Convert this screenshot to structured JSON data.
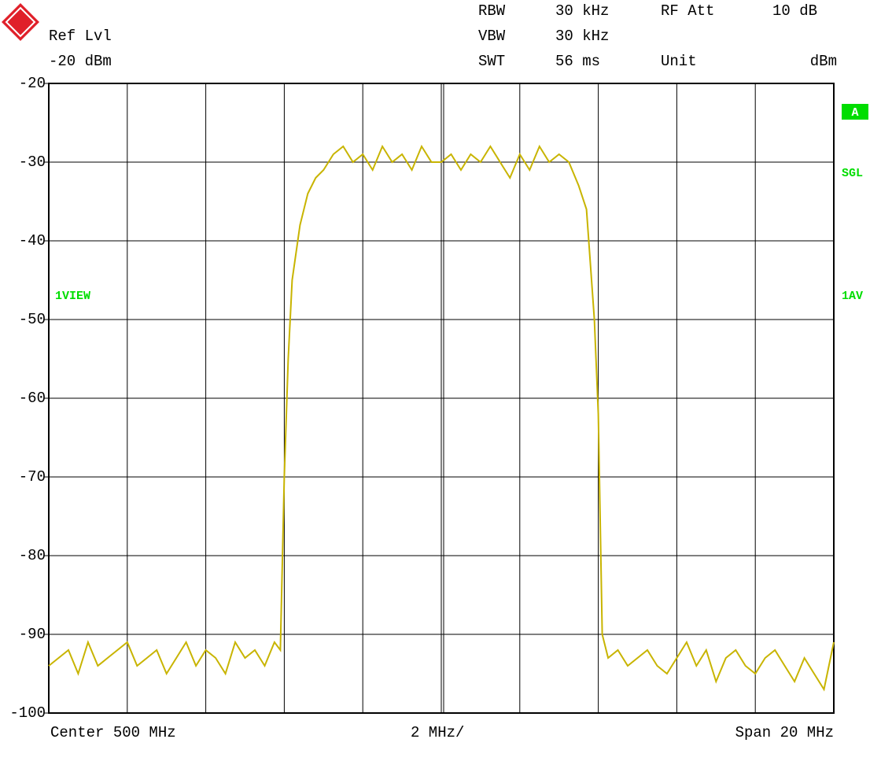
{
  "chart_data": {
    "type": "line",
    "header": {
      "ref_level_label": "Ref Lvl",
      "ref_level": "-20 dBm",
      "rbw_label": "RBW",
      "rbw": "30 kHz",
      "vbw_label": "VBW",
      "vbw": "30 kHz",
      "swt_label": "SWT",
      "swt": "56 ms",
      "rf_att_label": "RF Att",
      "rf_att": "10 dB",
      "unit_label": "Unit",
      "unit": "dBm"
    },
    "annotations": {
      "trace": "A",
      "sweep": "SGL",
      "trace_mode": "1VIEW",
      "detector": "1AV"
    },
    "footer": {
      "center": "Center 500 MHz",
      "scale": "2 MHz/",
      "span": "Span 20 MHz"
    },
    "x": [
      490,
      490.25,
      490.5,
      490.75,
      491,
      491.25,
      491.5,
      491.75,
      492,
      492.25,
      492.5,
      492.75,
      493,
      493.25,
      493.5,
      493.75,
      494,
      494.25,
      494.5,
      494.75,
      495,
      495.25,
      495.5,
      495.75,
      495.9,
      496.0,
      496.1,
      496.2,
      496.4,
      496.6,
      496.8,
      497.0,
      497.25,
      497.5,
      497.75,
      498,
      498.25,
      498.5,
      498.75,
      499,
      499.25,
      499.5,
      499.75,
      500,
      500.25,
      500.5,
      500.75,
      501,
      501.25,
      501.5,
      501.75,
      502,
      502.25,
      502.5,
      502.75,
      503,
      503.25,
      503.5,
      503.7,
      503.8,
      503.9,
      504.0,
      504.1,
      504.25,
      504.5,
      504.75,
      505,
      505.25,
      505.5,
      505.75,
      506,
      506.25,
      506.5,
      506.75,
      507,
      507.25,
      507.5,
      507.75,
      508,
      508.25,
      508.5,
      508.75,
      509,
      509.25,
      509.5,
      509.75,
      510
    ],
    "values": [
      -94,
      -93,
      -92,
      -95,
      -91,
      -94,
      -93,
      -92,
      -91,
      -94,
      -93,
      -92,
      -95,
      -93,
      -91,
      -94,
      -92,
      -93,
      -95,
      -91,
      -93,
      -92,
      -94,
      -91,
      -92,
      -70,
      -55,
      -45,
      -38,
      -34,
      -32,
      -31,
      -29,
      -28,
      -30,
      -29,
      -31,
      -28,
      -30,
      -29,
      -31,
      -28,
      -30,
      -30,
      -29,
      -31,
      -29,
      -30,
      -28,
      -30,
      -32,
      -29,
      -31,
      -28,
      -30,
      -29,
      -30,
      -33,
      -36,
      -43,
      -50,
      -62,
      -90,
      -93,
      -92,
      -94,
      -93,
      -92,
      -94,
      -95,
      -93,
      -91,
      -94,
      -92,
      -96,
      -93,
      -92,
      -94,
      -95,
      -93,
      -92,
      -94,
      -96,
      -93,
      -95,
      -97,
      -91
    ],
    "color": "#c8b400",
    "xlim": [
      490,
      510
    ],
    "ylim": [
      -100,
      -20
    ],
    "yticks": [
      -20,
      -30,
      -40,
      -50,
      -60,
      -70,
      -80,
      -90,
      -100
    ],
    "grid": true
  }
}
